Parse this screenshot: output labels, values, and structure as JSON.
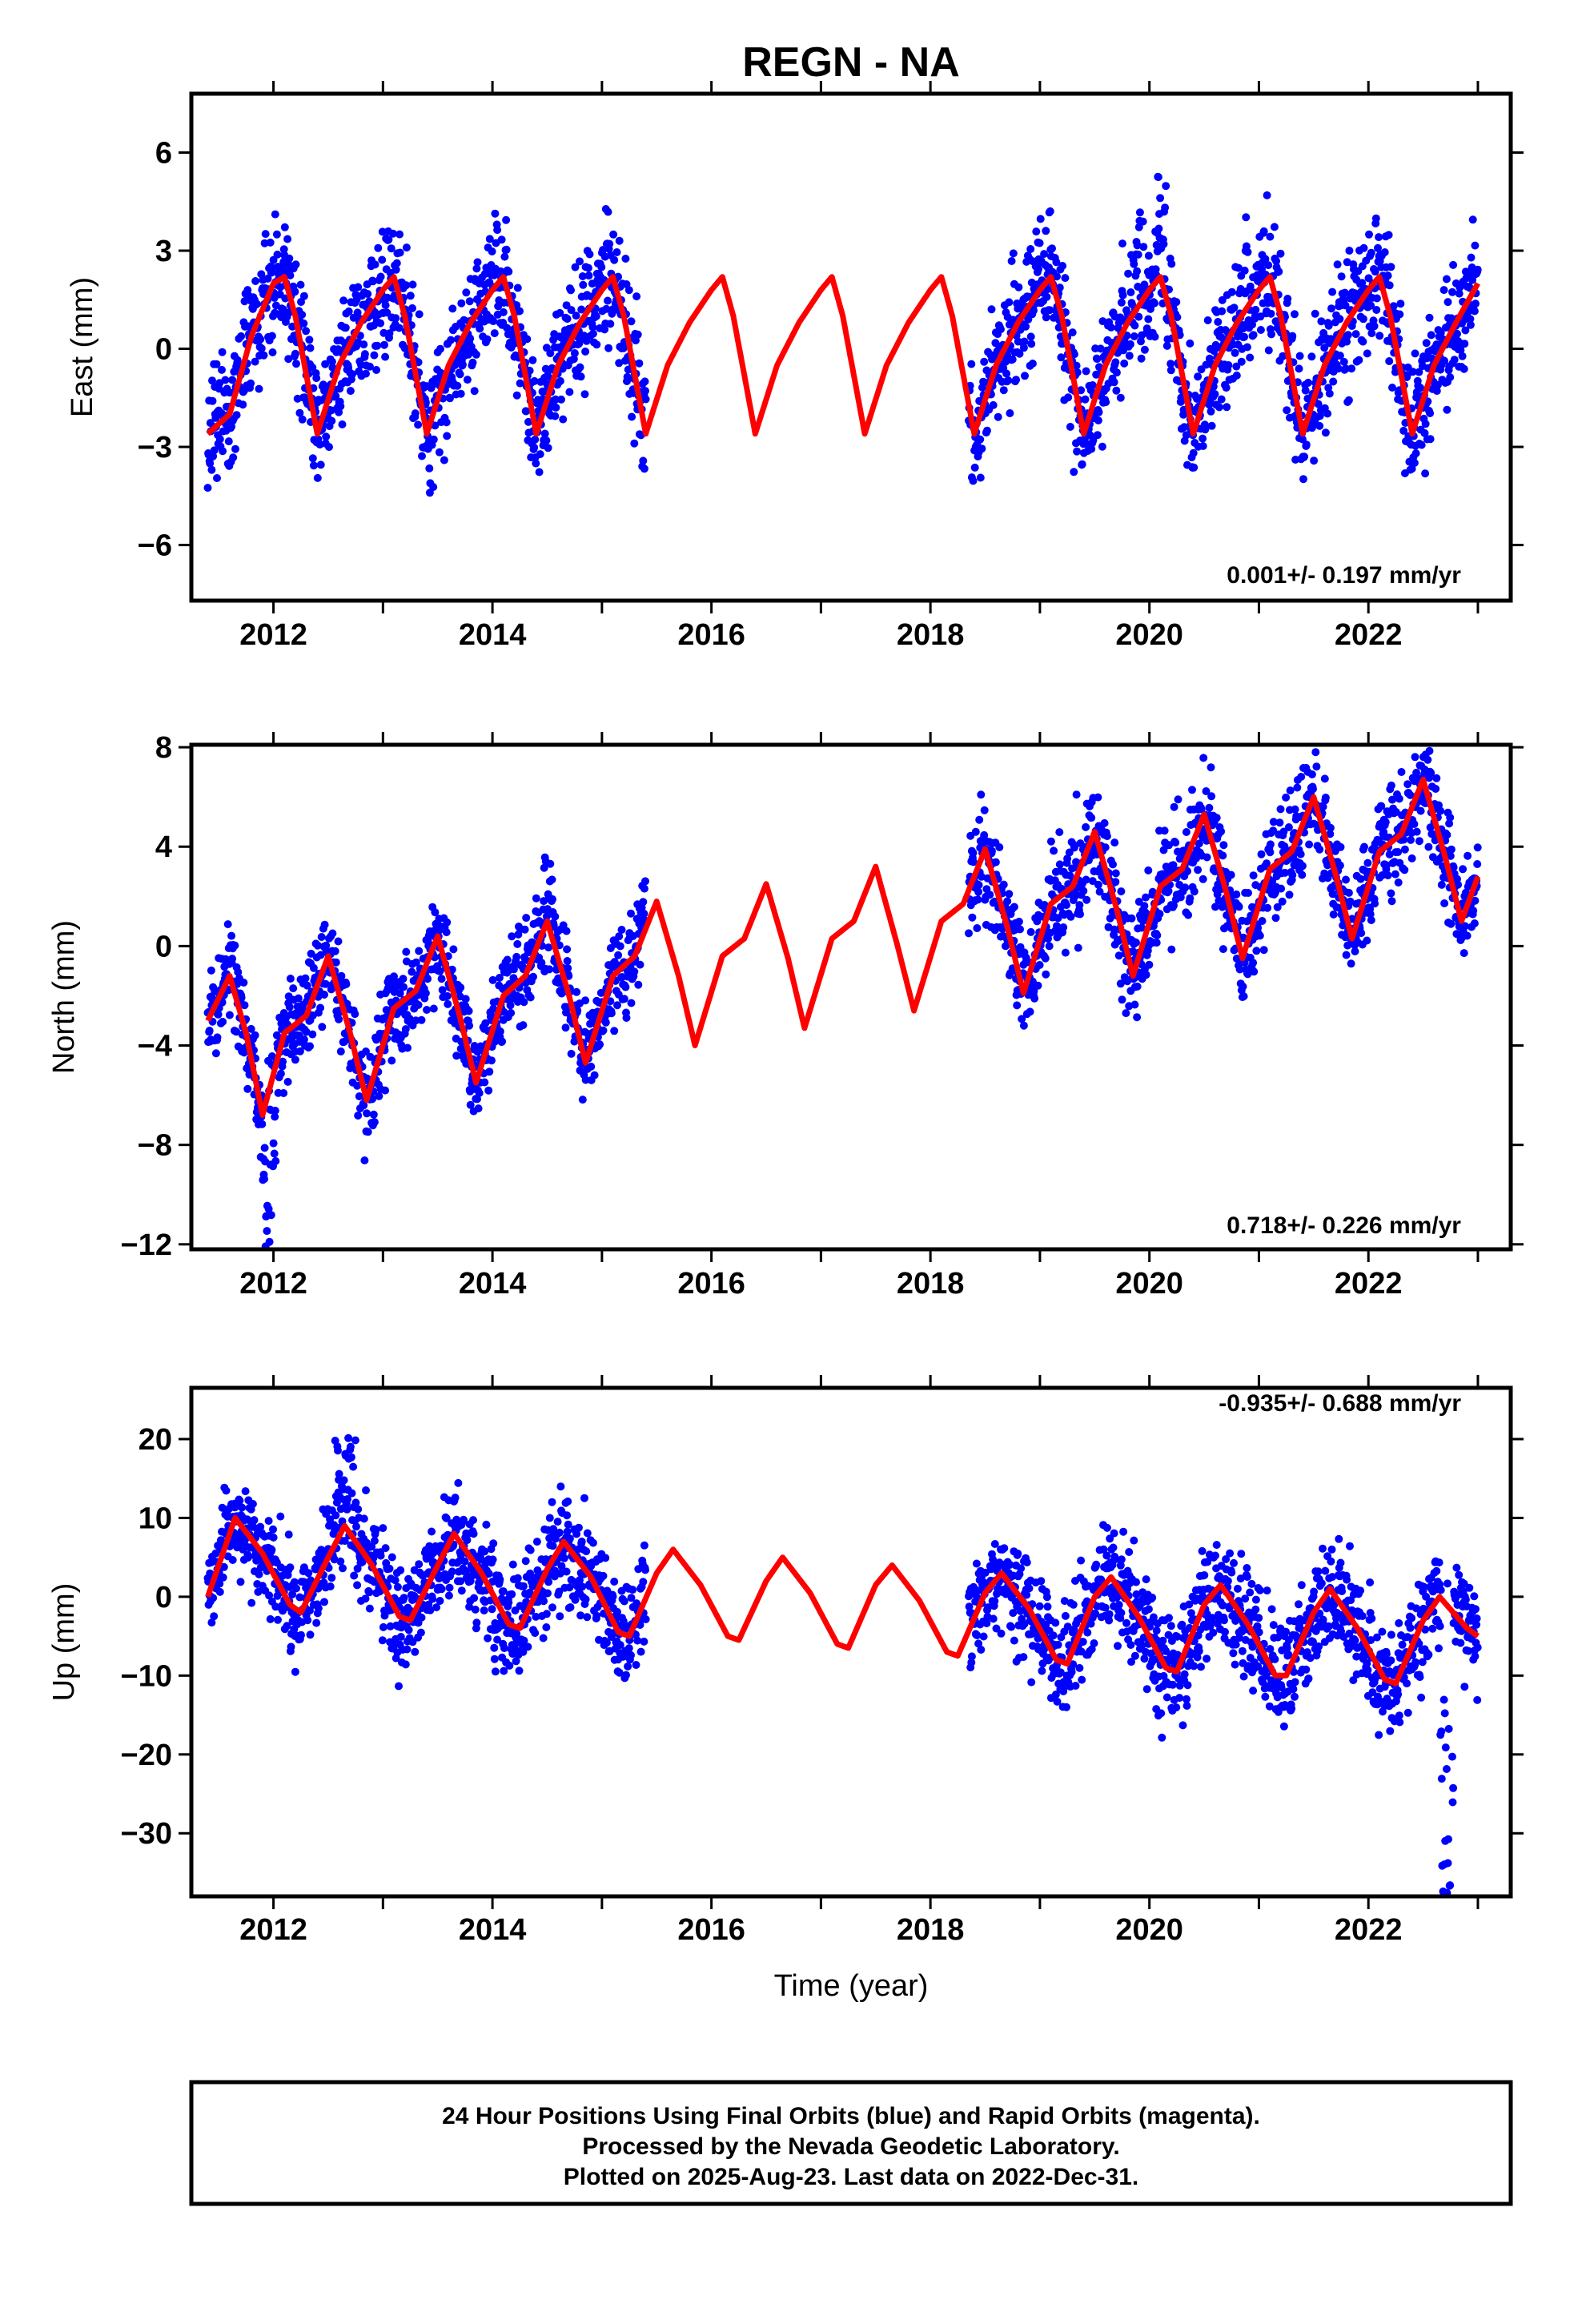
{
  "title": "REGN - NA",
  "xlabel": "Time (year)",
  "x_ticks": [
    "2012",
    "2014",
    "2016",
    "2018",
    "2020",
    "2022"
  ],
  "colors": {
    "points": "#0000ff",
    "fit": "#ff0000",
    "frame": "#000000"
  },
  "footer": {
    "line1": "24 Hour Positions Using Final Orbits (blue) and Rapid Orbits (magenta).",
    "line2": "Processed by the Nevada Geodetic Laboratory.",
    "line3": "Plotted on 2025-Aug-23. Last data on 2022-Dec-31."
  },
  "chart_data": [
    {
      "type": "scatter",
      "ylabel": "East (mm)",
      "rate": "0.001+/- 0.197 mm/yr",
      "xlim": [
        2011.25,
        2023.3
      ],
      "ylim": [
        -7.7,
        7.8
      ],
      "y_ticks": [
        6,
        3,
        0,
        -3,
        -6
      ],
      "y_tick_labels": [
        "6",
        "3",
        "0",
        "-3",
        "-6"
      ],
      "fit_anchors": [
        [
          2011.4,
          -2.6
        ],
        [
          2011.6,
          -2.0
        ],
        [
          2011.8,
          0.4
        ],
        [
          2012.0,
          2.0
        ],
        [
          2012.1,
          2.2
        ],
        [
          2012.2,
          1.0
        ],
        [
          2012.4,
          -2.6
        ],
        [
          2012.6,
          -0.5
        ],
        [
          2012.8,
          0.8
        ],
        [
          2013.0,
          1.8
        ],
        [
          2013.1,
          2.2
        ],
        [
          2013.2,
          1.0
        ],
        [
          2013.4,
          -2.6
        ],
        [
          2013.6,
          -0.5
        ],
        [
          2013.8,
          0.8
        ],
        [
          2014.0,
          1.8
        ],
        [
          2014.1,
          2.2
        ],
        [
          2014.2,
          1.0
        ],
        [
          2014.4,
          -2.6
        ],
        [
          2014.6,
          -0.5
        ],
        [
          2014.8,
          0.8
        ],
        [
          2015.0,
          1.8
        ],
        [
          2015.1,
          2.2
        ],
        [
          2015.2,
          1.0
        ],
        [
          2015.4,
          -2.6
        ],
        [
          2015.6,
          -0.5
        ],
        [
          2015.8,
          0.8
        ],
        [
          2016.0,
          1.8
        ],
        [
          2016.1,
          2.2
        ],
        [
          2016.2,
          1.0
        ],
        [
          2016.4,
          -2.6
        ],
        [
          2016.6,
          -0.5
        ],
        [
          2016.8,
          0.8
        ],
        [
          2017.0,
          1.8
        ],
        [
          2017.1,
          2.2
        ],
        [
          2017.2,
          1.0
        ],
        [
          2017.4,
          -2.6
        ],
        [
          2017.6,
          -0.5
        ],
        [
          2017.8,
          0.8
        ],
        [
          2018.0,
          1.8
        ],
        [
          2018.1,
          2.2
        ],
        [
          2018.2,
          1.0
        ],
        [
          2018.4,
          -2.6
        ],
        [
          2018.6,
          -0.5
        ],
        [
          2018.8,
          0.8
        ],
        [
          2019.0,
          1.8
        ],
        [
          2019.1,
          2.2
        ],
        [
          2019.2,
          1.0
        ],
        [
          2019.4,
          -2.6
        ],
        [
          2019.6,
          -0.5
        ],
        [
          2019.8,
          0.8
        ],
        [
          2020.0,
          1.8
        ],
        [
          2020.1,
          2.2
        ],
        [
          2020.2,
          1.0
        ],
        [
          2020.4,
          -2.6
        ],
        [
          2020.6,
          -0.5
        ],
        [
          2020.8,
          0.8
        ],
        [
          2021.0,
          1.8
        ],
        [
          2021.1,
          2.2
        ],
        [
          2021.2,
          1.0
        ],
        [
          2021.4,
          -2.6
        ],
        [
          2021.6,
          -0.5
        ],
        [
          2021.8,
          0.8
        ],
        [
          2022.0,
          1.8
        ],
        [
          2022.1,
          2.2
        ],
        [
          2022.2,
          1.0
        ],
        [
          2022.4,
          -2.6
        ],
        [
          2022.6,
          -0.5
        ],
        [
          2022.8,
          0.8
        ],
        [
          2023.0,
          2.0
        ]
      ],
      "point_segments": [
        {
          "start": 2011.4,
          "end": 2015.4,
          "step": 0.004,
          "scatter": 1.3
        },
        {
          "start": 2018.35,
          "end": 2023.0,
          "step": 0.004,
          "scatter": 1.3
        }
      ],
      "point_offsets": [
        [
          2013.2,
          0.5
        ],
        [
          2014.0,
          0.4
        ],
        [
          2019.0,
          1.8
        ],
        [
          2019.9,
          2.4
        ],
        [
          2020.1,
          2.2
        ]
      ]
    },
    {
      "type": "scatter",
      "ylabel": "North (mm)",
      "rate": "0.718+/- 0.226 mm/yr",
      "xlim": [
        2011.25,
        2023.3
      ],
      "ylim": [
        -12.2,
        8.1
      ],
      "y_ticks": [
        8,
        4,
        0,
        -4,
        -8,
        -12
      ],
      "y_tick_labels": [
        "8",
        "4",
        "0",
        "-4",
        "-8",
        "-12"
      ],
      "fit_anchors": [
        [
          2011.4,
          -3.0
        ],
        [
          2011.6,
          -1.2
        ],
        [
          2011.75,
          -3.5
        ],
        [
          2011.9,
          -6.8
        ],
        [
          2012.1,
          -3.5
        ],
        [
          2012.3,
          -2.8
        ],
        [
          2012.5,
          -0.4
        ],
        [
          2012.7,
          -3.5
        ],
        [
          2012.85,
          -6.2
        ],
        [
          2013.1,
          -2.5
        ],
        [
          2013.3,
          -1.8
        ],
        [
          2013.5,
          0.4
        ],
        [
          2013.7,
          -2.8
        ],
        [
          2013.85,
          -5.5
        ],
        [
          2014.1,
          -2.0
        ],
        [
          2014.3,
          -1.2
        ],
        [
          2014.5,
          1.0
        ],
        [
          2014.7,
          -2.0
        ],
        [
          2014.85,
          -4.7
        ],
        [
          2015.1,
          -1.2
        ],
        [
          2015.3,
          -0.4
        ],
        [
          2015.5,
          1.8
        ],
        [
          2015.7,
          -1.2
        ],
        [
          2015.85,
          -4.0
        ],
        [
          2016.1,
          -0.4
        ],
        [
          2016.3,
          0.3
        ],
        [
          2016.5,
          2.5
        ],
        [
          2016.7,
          -0.5
        ],
        [
          2016.85,
          -3.3
        ],
        [
          2017.1,
          0.3
        ],
        [
          2017.3,
          1.0
        ],
        [
          2017.5,
          3.2
        ],
        [
          2017.7,
          0.0
        ],
        [
          2017.85,
          -2.6
        ],
        [
          2018.1,
          1.0
        ],
        [
          2018.3,
          1.7
        ],
        [
          2018.5,
          3.9
        ],
        [
          2018.7,
          0.8
        ],
        [
          2018.85,
          -1.9
        ],
        [
          2019.1,
          1.7
        ],
        [
          2019.3,
          2.4
        ],
        [
          2019.5,
          4.6
        ],
        [
          2019.7,
          1.5
        ],
        [
          2019.85,
          -1.2
        ],
        [
          2020.1,
          2.4
        ],
        [
          2020.3,
          3.1
        ],
        [
          2020.5,
          5.3
        ],
        [
          2020.7,
          2.2
        ],
        [
          2020.85,
          -0.5
        ],
        [
          2021.1,
          3.1
        ],
        [
          2021.3,
          3.8
        ],
        [
          2021.5,
          6.0
        ],
        [
          2021.7,
          2.9
        ],
        [
          2021.85,
          0.3
        ],
        [
          2022.1,
          3.8
        ],
        [
          2022.3,
          4.5
        ],
        [
          2022.5,
          6.7
        ],
        [
          2022.7,
          3.6
        ],
        [
          2022.85,
          1.0
        ],
        [
          2023.0,
          2.8
        ]
      ],
      "point_segments": [
        {
          "start": 2011.4,
          "end": 2015.4,
          "step": 0.004,
          "scatter": 1.4
        },
        {
          "start": 2018.35,
          "end": 2023.0,
          "step": 0.004,
          "scatter": 1.5
        }
      ],
      "point_offsets": [
        [
          2011.95,
          -3.5
        ],
        [
          2011.97,
          -5.0
        ],
        [
          2014.5,
          1.5
        ]
      ]
    },
    {
      "type": "scatter",
      "ylabel": "Up (mm)",
      "rate": "-0.935+/- 0.688 mm/yr",
      "xlim": [
        2011.25,
        2023.3
      ],
      "ylim": [
        -38,
        26.5
      ],
      "y_ticks": [
        20,
        10,
        0,
        -10,
        -20,
        -30
      ],
      "y_tick_labels": [
        "20",
        "10",
        "0",
        "-10",
        "-20",
        "-30"
      ],
      "fit_anchors": [
        [
          2011.4,
          0.0
        ],
        [
          2011.65,
          10.0
        ],
        [
          2011.9,
          5.5
        ],
        [
          2012.15,
          -1.0
        ],
        [
          2012.25,
          -2.0
        ],
        [
          2012.5,
          5.0
        ],
        [
          2012.65,
          9.0
        ],
        [
          2012.9,
          4.0
        ],
        [
          2013.15,
          -2.5
        ],
        [
          2013.25,
          -3.0
        ],
        [
          2013.5,
          4.0
        ],
        [
          2013.65,
          8.0
        ],
        [
          2013.9,
          3.0
        ],
        [
          2014.15,
          -3.5
        ],
        [
          2014.25,
          -4.0
        ],
        [
          2014.5,
          3.5
        ],
        [
          2014.65,
          7.0
        ],
        [
          2014.9,
          2.5
        ],
        [
          2015.15,
          -4.5
        ],
        [
          2015.25,
          -5.0
        ],
        [
          2015.5,
          3.0
        ],
        [
          2015.65,
          6.0
        ],
        [
          2015.9,
          1.5
        ],
        [
          2016.15,
          -5.0
        ],
        [
          2016.25,
          -5.5
        ],
        [
          2016.5,
          2.0
        ],
        [
          2016.65,
          5.0
        ],
        [
          2016.9,
          0.5
        ],
        [
          2017.15,
          -6.0
        ],
        [
          2017.25,
          -6.5
        ],
        [
          2017.5,
          1.5
        ],
        [
          2017.65,
          4.0
        ],
        [
          2017.9,
          -0.5
        ],
        [
          2018.15,
          -7.0
        ],
        [
          2018.25,
          -7.5
        ],
        [
          2018.5,
          0.5
        ],
        [
          2018.65,
          3.0
        ],
        [
          2018.9,
          -1.5
        ],
        [
          2019.15,
          -8.0
        ],
        [
          2019.25,
          -8.5
        ],
        [
          2019.5,
          0.0
        ],
        [
          2019.65,
          2.5
        ],
        [
          2019.9,
          -2.5
        ],
        [
          2020.15,
          -9.0
        ],
        [
          2020.25,
          -9.5
        ],
        [
          2020.5,
          -1.0
        ],
        [
          2020.65,
          1.5
        ],
        [
          2020.9,
          -3.5
        ],
        [
          2021.15,
          -10.0
        ],
        [
          2021.25,
          -10.0
        ],
        [
          2021.5,
          -2.0
        ],
        [
          2021.65,
          1.0
        ],
        [
          2021.9,
          -4.0
        ],
        [
          2022.15,
          -10.5
        ],
        [
          2022.25,
          -11.0
        ],
        [
          2022.5,
          -3.0
        ],
        [
          2022.65,
          0.0
        ],
        [
          2022.9,
          -4.0
        ],
        [
          2023.0,
          -5.0
        ]
      ],
      "point_segments": [
        {
          "start": 2011.4,
          "end": 2015.4,
          "step": 0.004,
          "scatter": 4.5
        },
        {
          "start": 2018.35,
          "end": 2023.0,
          "step": 0.004,
          "scatter": 5.0
        }
      ],
      "point_offsets": [
        [
          2012.6,
          12.0
        ],
        [
          2012.7,
          14.0
        ],
        [
          2022.7,
          -28.0
        ],
        [
          2022.72,
          -33.0
        ],
        [
          2022.75,
          -30.0
        ]
      ]
    }
  ]
}
